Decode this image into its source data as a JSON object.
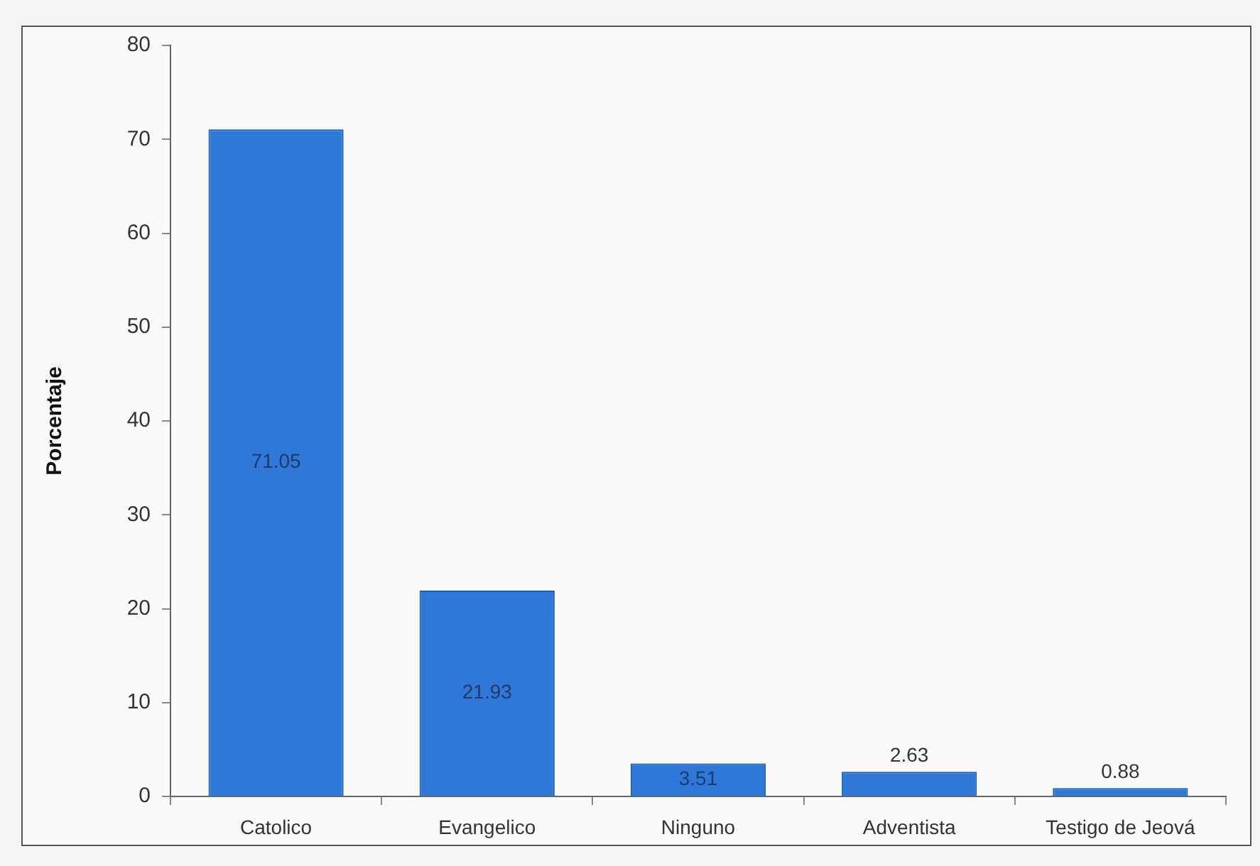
{
  "chart_data": {
    "type": "bar",
    "ylabel": "Porcentaje",
    "categories": [
      "Catolico",
      "Evangelico",
      "Ninguno",
      "Adventista",
      "Testigo de Jeová"
    ],
    "values": [
      71.05,
      21.93,
      3.51,
      2.63,
      0.88
    ],
    "color": "#2f78d8",
    "ylim": [
      0,
      80
    ],
    "yticks": [
      0,
      10,
      20,
      30,
      40,
      50,
      60,
      70,
      80
    ],
    "data_labels": true,
    "legend": false,
    "grid": false
  }
}
